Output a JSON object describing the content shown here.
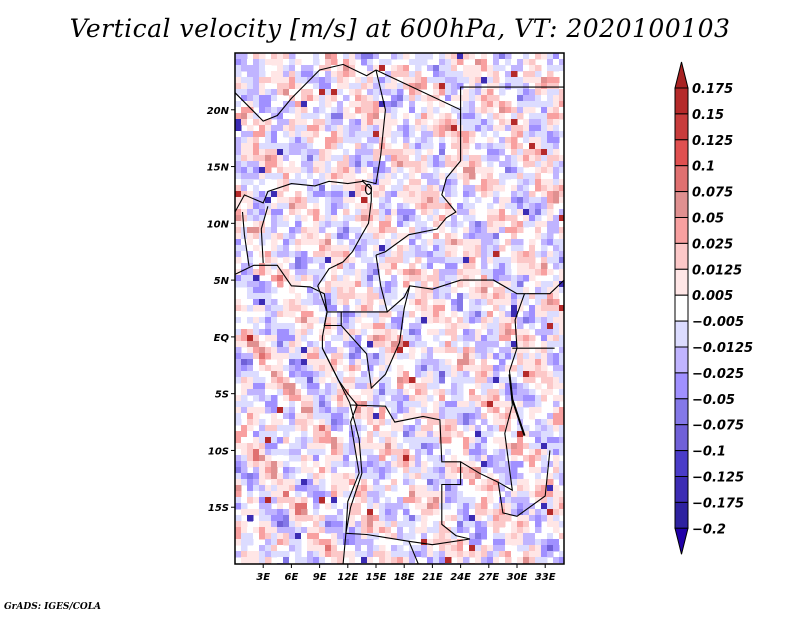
{
  "title": "Vertical velocity [m/s] at 600hPa, VT: 2020100103",
  "footer": "GrADS: IGES/COLA",
  "map": {
    "variable": "Vertical velocity",
    "units": "m/s",
    "level": "600hPa",
    "valid_time": "2020100103",
    "lon_range": [
      0,
      35
    ],
    "lat_range": [
      -20,
      25
    ],
    "x_ticks": [
      {
        "value": 3,
        "label": "3E"
      },
      {
        "value": 6,
        "label": "6E"
      },
      {
        "value": 9,
        "label": "9E"
      },
      {
        "value": 12,
        "label": "12E"
      },
      {
        "value": 15,
        "label": "15E"
      },
      {
        "value": 18,
        "label": "18E"
      },
      {
        "value": 21,
        "label": "21E"
      },
      {
        "value": 24,
        "label": "24E"
      },
      {
        "value": 27,
        "label": "27E"
      },
      {
        "value": 30,
        "label": "30E"
      },
      {
        "value": 33,
        "label": "33E"
      }
    ],
    "y_ticks": [
      {
        "value": 20,
        "label": "20N"
      },
      {
        "value": 15,
        "label": "15N"
      },
      {
        "value": 10,
        "label": "10N"
      },
      {
        "value": 5,
        "label": "5N"
      },
      {
        "value": 0,
        "label": "EQ"
      },
      {
        "value": -5,
        "label": "5S"
      },
      {
        "value": -10,
        "label": "10S"
      },
      {
        "value": -15,
        "label": "15S"
      }
    ]
  },
  "colorbar": {
    "labels": [
      "0.175",
      "0.15",
      "0.125",
      "0.1",
      "0.075",
      "0.05",
      "0.025",
      "0.0125",
      "0.005",
      "−0.005",
      "−0.0125",
      "−0.025",
      "−0.05",
      "−0.075",
      "−0.1",
      "−0.125",
      "−0.175",
      "−0.2"
    ],
    "colors": [
      "#a82323",
      "#b52a2a",
      "#c83c3c",
      "#e05050",
      "#e07070",
      "#e09090",
      "#f8a0a0",
      "#fcc8c8",
      "#ffe6e6",
      "#ffffff",
      "#dcdcff",
      "#c0b4ff",
      "#a090ff",
      "#8478e8",
      "#7060d8",
      "#4a3cc8",
      "#3c2cb4",
      "#2e22a0",
      "#2000a8"
    ]
  }
}
